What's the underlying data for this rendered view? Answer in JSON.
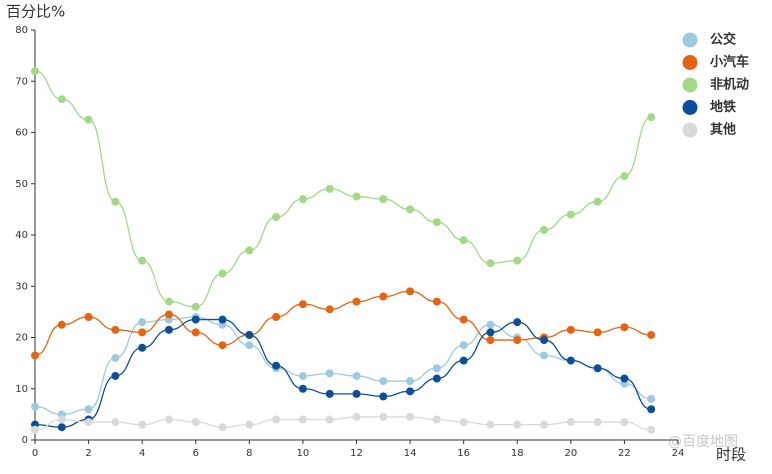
{
  "chart_data": {
    "type": "line",
    "y_label": "百分比%",
    "x_label": "时段",
    "watermark": "@百度地图",
    "x": [
      0,
      1,
      2,
      3,
      4,
      5,
      6,
      7,
      8,
      9,
      10,
      11,
      12,
      13,
      14,
      15,
      16,
      17,
      18,
      19,
      20,
      21,
      22,
      23
    ],
    "xlim": [
      0,
      24
    ],
    "xticks": [
      0,
      2,
      4,
      6,
      8,
      10,
      12,
      14,
      16,
      18,
      20,
      22,
      24
    ],
    "ylim": [
      0,
      80
    ],
    "yticks": [
      0,
      10,
      20,
      30,
      40,
      50,
      60,
      70,
      80
    ],
    "grid": false,
    "legend": "top-right",
    "series": [
      {
        "name": "公交",
        "color": "#9ecae1",
        "values": [
          6.5,
          5,
          6,
          16,
          23,
          23.5,
          24,
          22.5,
          18.5,
          14,
          12.5,
          13,
          12.5,
          11.5,
          11.5,
          14,
          18.5,
          22.5,
          20,
          16.5,
          15.5,
          14,
          11,
          8
        ]
      },
      {
        "name": "小汽车",
        "color": "#e6640f",
        "values": [
          16.5,
          22.5,
          24,
          21.5,
          21,
          24.5,
          21,
          18.5,
          20.5,
          24,
          26.5,
          25.5,
          27,
          28,
          29,
          27,
          23.5,
          19.5,
          19.5,
          20,
          21.5,
          21,
          22,
          20.5
        ]
      },
      {
        "name": "非机动",
        "color": "#a1d985",
        "values": [
          72,
          66.5,
          62.5,
          46.5,
          35,
          27,
          26,
          32.5,
          37,
          43.5,
          47,
          49,
          47.5,
          47,
          45,
          42.5,
          39,
          34.5,
          35,
          41,
          44,
          46.5,
          51.5,
          63
        ]
      },
      {
        "name": "地铁",
        "color": "#0b4f9c",
        "values": [
          3,
          2.5,
          4,
          12.5,
          18,
          21.5,
          23.5,
          23.5,
          20.5,
          14.5,
          10,
          9,
          9,
          8.5,
          9.5,
          12,
          15.5,
          21,
          23,
          19.5,
          15.5,
          14,
          12,
          6
        ]
      },
      {
        "name": "其他",
        "color": "#d9d9d9",
        "values": [
          2,
          4,
          3.5,
          3.5,
          3,
          4,
          3.5,
          2.5,
          3,
          4,
          4,
          4,
          4.5,
          4.5,
          4.5,
          4,
          3.5,
          3,
          3,
          3,
          3.5,
          3.5,
          3.5,
          2
        ]
      }
    ]
  }
}
